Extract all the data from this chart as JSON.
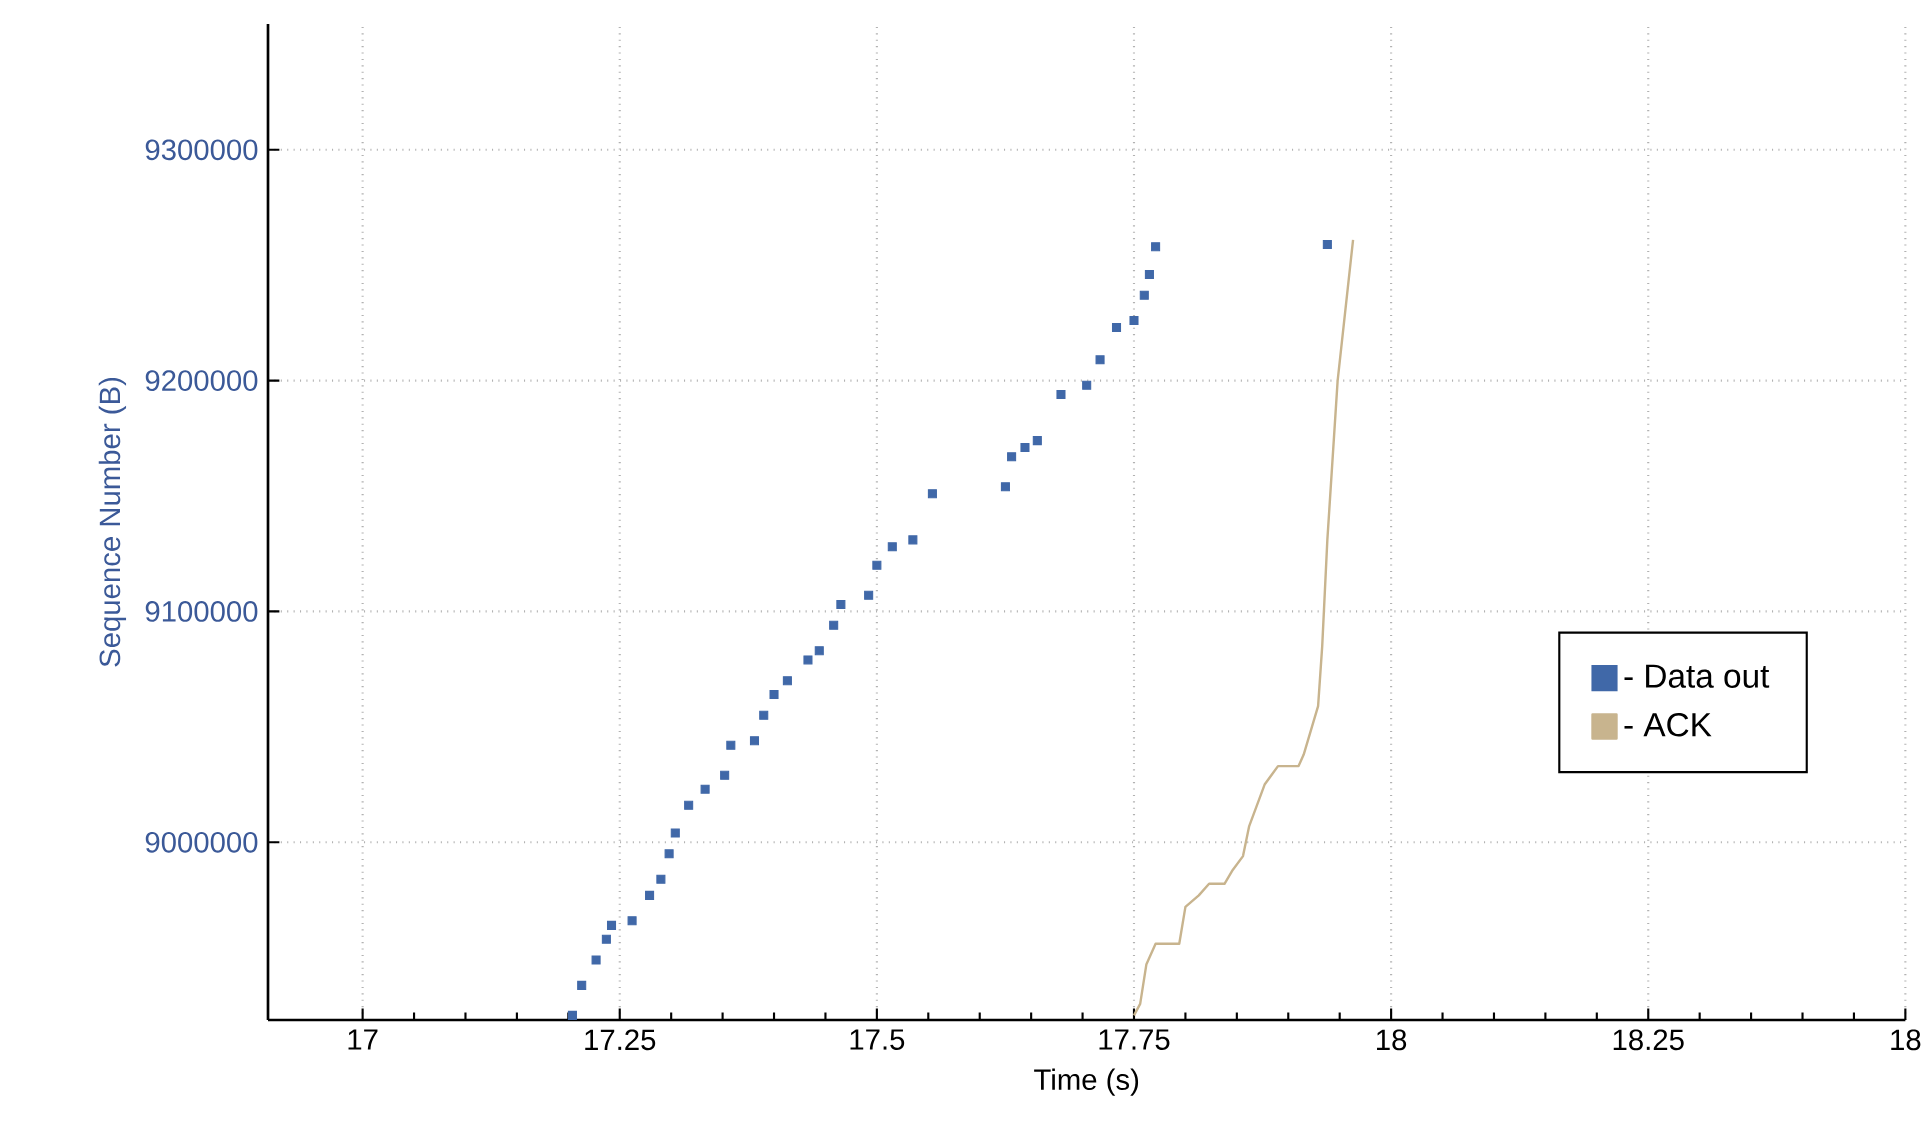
{
  "chart_data": {
    "type": "scatter",
    "xlabel": "Time (s)",
    "ylabel": "Sequence Number (B)",
    "xlim": [
      16.908,
      18.5
    ],
    "ylim": [
      8923000,
      9354500
    ],
    "xticks": [
      17,
      17.25,
      17.5,
      17.75,
      18,
      18.25,
      {
        "value": 18.5,
        "label": "18"
      }
    ],
    "yticks": [
      9000000,
      9100000,
      9200000,
      9300000
    ],
    "grid": true,
    "legend": "right",
    "series": [
      {
        "name": "- Data out",
        "marker": "square",
        "color": "#4068a8",
        "x": [
          17.204,
          17.213,
          17.227,
          17.237,
          17.242,
          17.262,
          17.279,
          17.29,
          17.298,
          17.304,
          17.317,
          17.333,
          17.352,
          17.358,
          17.381,
          17.39,
          17.4,
          17.413,
          17.433,
          17.444,
          17.458,
          17.465,
          17.492,
          17.5,
          17.515,
          17.535,
          17.554,
          17.625,
          17.631,
          17.644,
          17.656,
          17.679,
          17.704,
          17.717,
          17.733,
          17.75,
          17.76,
          17.765,
          17.771,
          17.938
        ],
        "values": [
          8925000,
          8938000,
          8949000,
          8958000,
          8964000,
          8966000,
          8977000,
          8984000,
          8995000,
          9004000,
          9016000,
          9023000,
          9029000,
          9042000,
          9044000,
          9055000,
          9064000,
          9070000,
          9079000,
          9083000,
          9094000,
          9103000,
          9107000,
          9120000,
          9128000,
          9131000,
          9151000,
          9154000,
          9167000,
          9171000,
          9174000,
          9194000,
          9198000,
          9209000,
          9223000,
          9226000,
          9237000,
          9246000,
          9258000,
          9259000
        ]
      },
      {
        "name": "- ACK",
        "type": "line",
        "line_style": "solid",
        "color": "#c8b48e",
        "x": [
          17.75,
          17.756,
          17.762,
          17.771,
          17.794,
          17.8,
          17.813,
          17.823,
          17.838,
          17.846,
          17.856,
          17.862,
          17.877,
          17.89,
          17.91,
          17.915,
          17.923,
          17.929,
          17.933,
          17.938,
          17.948,
          17.963
        ],
        "values": [
          8925000,
          8930000,
          8947000,
          8956000,
          8956000,
          8972000,
          8977000,
          8982000,
          8982000,
          8988000,
          8994000,
          9007000,
          9025000,
          9033000,
          9033000,
          9038000,
          9050000,
          9059000,
          9085000,
          9131000,
          9200000,
          9261000
        ]
      }
    ]
  }
}
